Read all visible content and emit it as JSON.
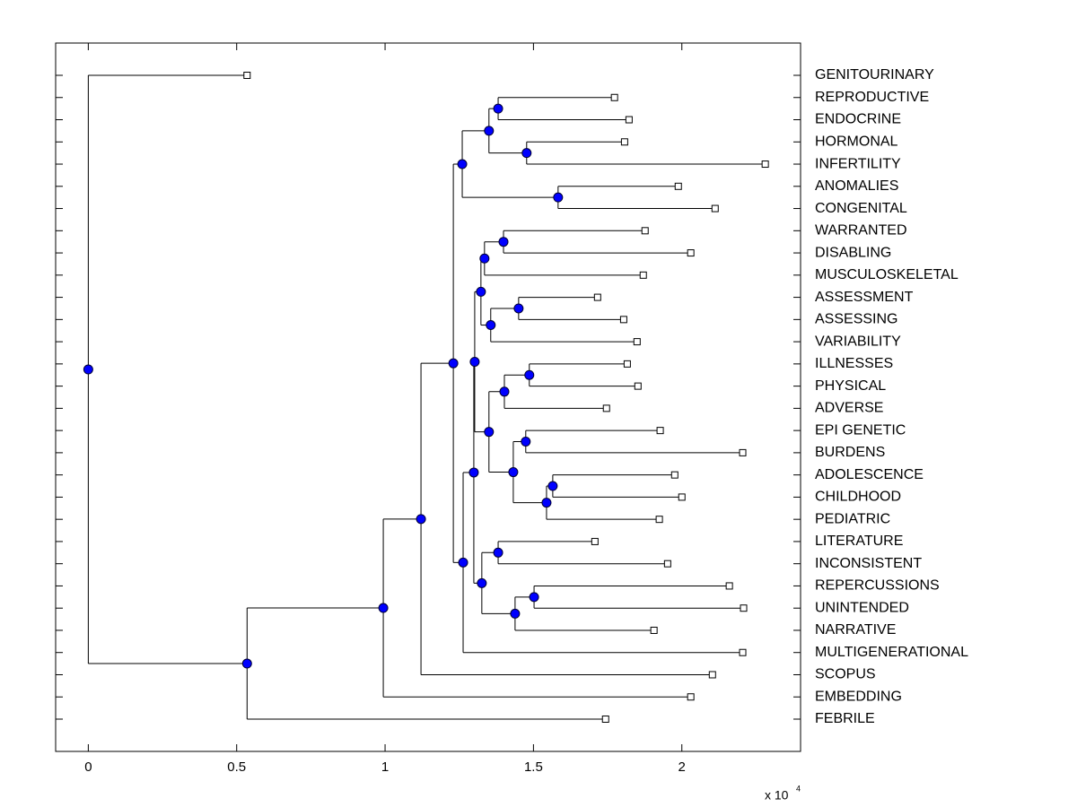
{
  "chart_data": {
    "type": "dendrogram",
    "xlim": [
      -0.11,
      2.4
    ],
    "xticks": [
      0,
      0.5,
      1,
      1.5,
      2
    ],
    "x_multiplier": {
      "base": "x 10",
      "exponent": "4"
    },
    "node_color": "#0000ff",
    "leaf_color": "#ffffff",
    "tree": {
      "height": 0,
      "children": [
        {
          "label": "GENITOURINARY",
          "height": 0.535
        },
        {
          "height": 0.535,
          "children": [
            {
              "height": 0.994,
              "children": [
                {
                  "height": 1.121,
                  "children": [
                    {
                      "height": 1.23,
                      "children": [
                        {
                          "height": 1.26,
                          "children": [
                            {
                              "height": 1.35,
                              "children": [
                                {
                                  "height": 1.381,
                                  "children": [
                                    {
                                      "label": "REPRODUCTIVE",
                                      "height": 1.773
                                    },
                                    {
                                      "label": "ENDOCRINE",
                                      "height": 1.822
                                    }
                                  ]
                                },
                                {
                                  "height": 1.477,
                                  "children": [
                                    {
                                      "label": "HORMONAL",
                                      "height": 1.807
                                    },
                                    {
                                      "label": "INFERTILITY",
                                      "height": 2.281
                                    }
                                  ]
                                }
                              ]
                            },
                            {
                              "height": 1.583,
                              "children": [
                                {
                                  "label": "ANOMALIES",
                                  "height": 1.988
                                },
                                {
                                  "label": "CONGENITAL",
                                  "height": 2.112
                                }
                              ]
                            }
                          ]
                        },
                        {
                          "height": 1.263,
                          "children": [
                            {
                              "height": 1.299,
                              "children": [
                                {
                                  "height": 1.302,
                                  "children": [
                                    {
                                      "height": 1.323,
                                      "children": [
                                        {
                                          "height": 1.335,
                                          "children": [
                                            {
                                              "height": 1.399,
                                              "children": [
                                                {
                                                  "label": "WARRANTED",
                                                  "height": 1.876
                                                },
                                                {
                                                  "label": "DISABLING",
                                                  "height": 2.03
                                                }
                                              ]
                                            },
                                            {
                                              "label": "MUSCULOSKELETAL",
                                              "height": 1.87
                                            }
                                          ]
                                        },
                                        {
                                          "height": 1.356,
                                          "children": [
                                            {
                                              "height": 1.45,
                                              "children": [
                                                {
                                                  "label": "ASSESSMENT",
                                                  "height": 1.716
                                                },
                                                {
                                                  "label": "ASSESSING",
                                                  "height": 1.804
                                                }
                                              ]
                                            },
                                            {
                                              "label": "VARIABILITY",
                                              "height": 1.849
                                            }
                                          ]
                                        }
                                      ]
                                    },
                                    {
                                      "height": 1.35,
                                      "children": [
                                        {
                                          "height": 1.402,
                                          "children": [
                                            {
                                              "height": 1.486,
                                              "children": [
                                                {
                                                  "label": "ILLNESSES",
                                                  "height": 1.816
                                                },
                                                {
                                                  "label": "PHYSICAL",
                                                  "height": 1.852
                                                }
                                              ]
                                            },
                                            {
                                              "label": "ADVERSE",
                                              "height": 1.746
                                            }
                                          ]
                                        },
                                        {
                                          "height": 1.432,
                                          "children": [
                                            {
                                              "height": 1.474,
                                              "children": [
                                                {
                                                  "label": "EPI GENETIC",
                                                  "height": 1.927
                                                },
                                                {
                                                  "label": "BURDENS",
                                                  "height": 2.205
                                                }
                                              ]
                                            },
                                            {
                                              "height": 1.544,
                                              "children": [
                                                {
                                                  "height": 1.565,
                                                  "children": [
                                                    {
                                                      "label": "ADOLESCENCE",
                                                      "height": 1.976
                                                    },
                                                    {
                                                      "label": "CHILDHOOD",
                                                      "height": 2.0
                                                    }
                                                  ]
                                                },
                                                {
                                                  "label": "PEDIATRIC",
                                                  "height": 1.924
                                                }
                                              ]
                                            }
                                          ]
                                        }
                                      ]
                                    }
                                  ]
                                },
                                {
                                  "height": 1.326,
                                  "children": [
                                    {
                                      "height": 1.381,
                                      "children": [
                                        {
                                          "label": "LITERATURE",
                                          "height": 1.707
                                        },
                                        {
                                          "label": "INCONSISTENT",
                                          "height": 1.952
                                        }
                                      ]
                                    },
                                    {
                                      "height": 1.438,
                                      "children": [
                                        {
                                          "height": 1.502,
                                          "children": [
                                            {
                                              "label": "REPERCUSSIONS",
                                              "height": 2.16
                                            },
                                            {
                                              "label": "UNINTENDED",
                                              "height": 2.208
                                            }
                                          ]
                                        },
                                        {
                                          "label": "NARRATIVE",
                                          "height": 1.906
                                        }
                                      ]
                                    }
                                  ]
                                }
                              ]
                            },
                            {
                              "label": "MULTIGENERATIONAL",
                              "height": 2.205
                            }
                          ]
                        }
                      ]
                    },
                    {
                      "label": "SCOPUS",
                      "height": 2.103
                    }
                  ]
                },
                {
                  "label": "EMBEDDING",
                  "height": 2.03
                }
              ]
            },
            {
              "label": "FEBRILE",
              "height": 1.743
            }
          ]
        }
      ]
    }
  }
}
